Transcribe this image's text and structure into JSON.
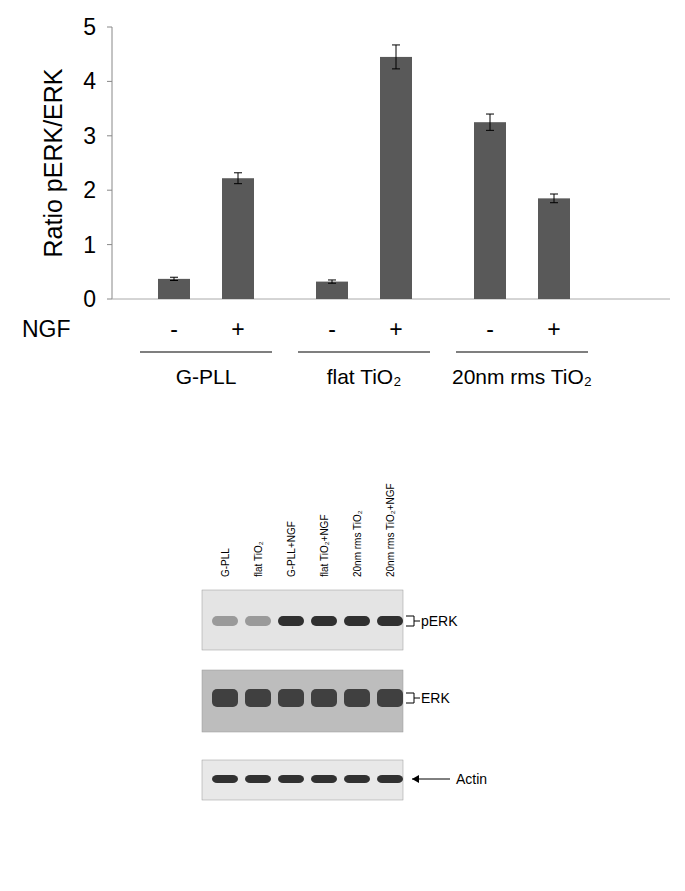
{
  "chart_data": {
    "type": "bar",
    "y_label": "Ratio pERK/ERK",
    "x_label": "NGF",
    "categories": [
      "-",
      "+",
      "-",
      "+",
      "-",
      "+"
    ],
    "values": [
      0.37,
      2.22,
      0.32,
      4.45,
      3.25,
      1.85
    ],
    "errors": [
      0.03,
      0.1,
      0.03,
      0.22,
      0.15,
      0.08
    ],
    "groups": [
      "G-PLL",
      "flat TiO₂",
      "20nm rms TiO₂"
    ],
    "color": "#595959",
    "ylim": [
      0,
      5
    ],
    "yticks": [
      0,
      1,
      2,
      3,
      4,
      5
    ],
    "grid": false
  },
  "blot": {
    "lanes": [
      "G-PLL",
      "flat TiO₂",
      "G-PLL+NGF",
      "flat TiO₂+NGF",
      "20nm rms TiO₂",
      "20nm rms TiO₂+NGF"
    ],
    "panels": [
      "pERK",
      "ERK",
      "Actin"
    ]
  }
}
